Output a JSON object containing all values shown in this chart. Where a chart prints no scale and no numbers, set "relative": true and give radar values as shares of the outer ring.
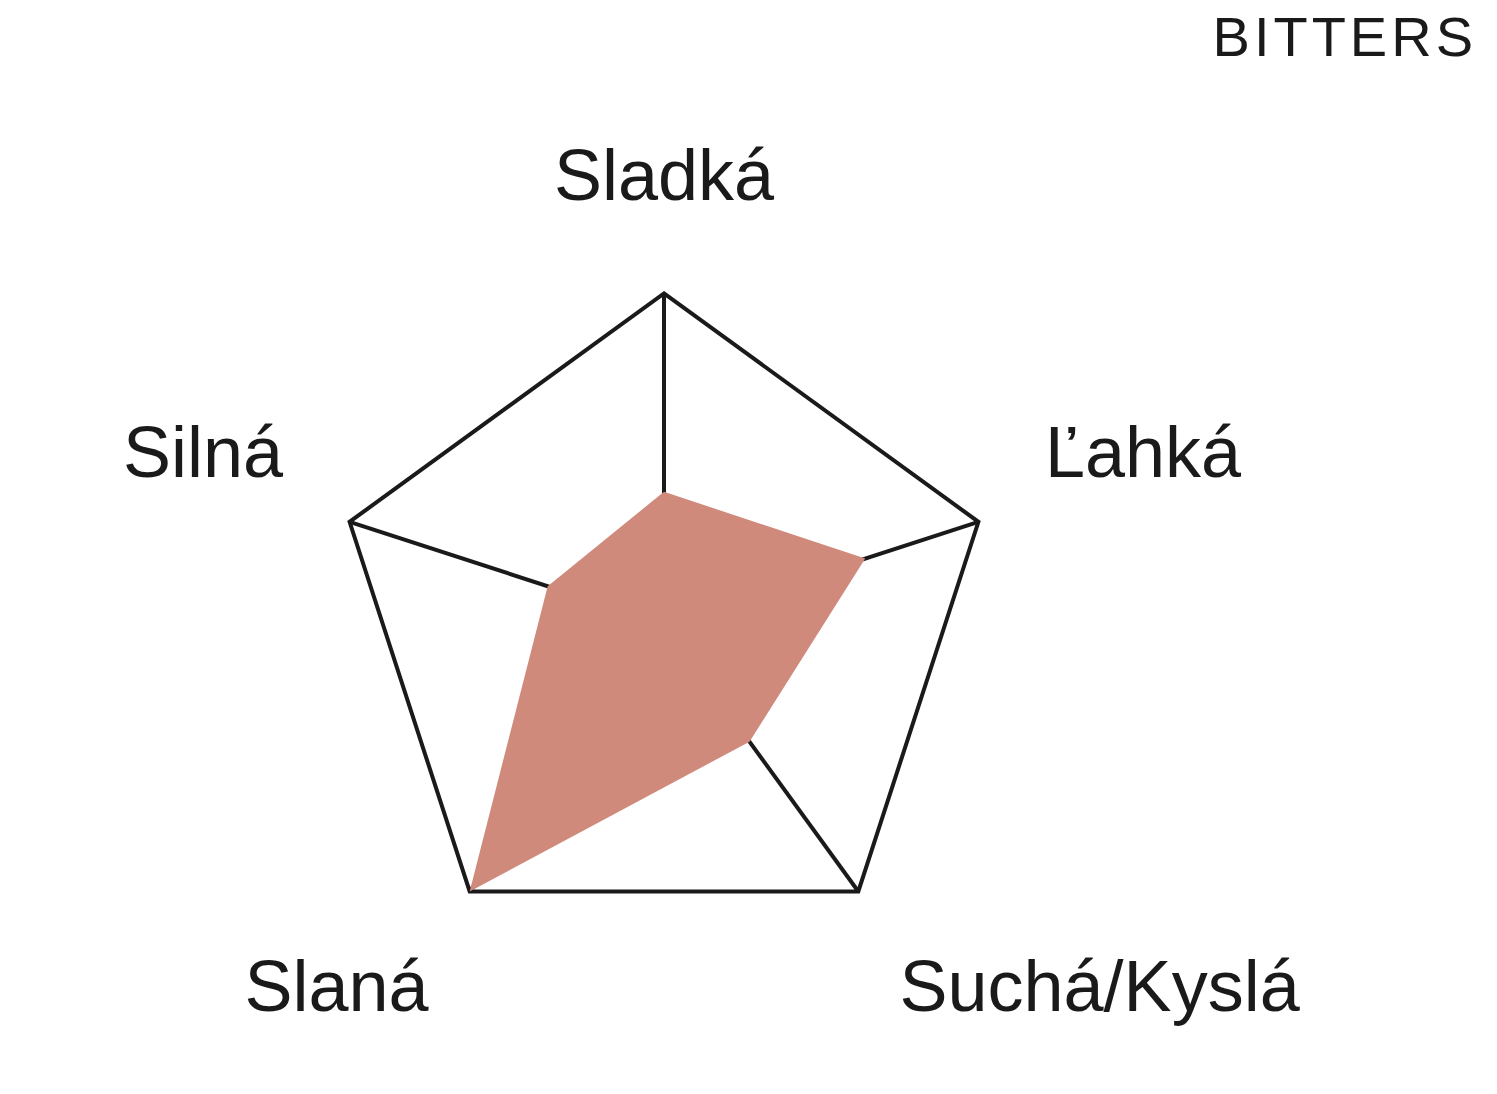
{
  "chart_data": {
    "type": "radar",
    "title": "BITTERS",
    "categories": [
      "Sladká",
      "Ľahká",
      "Suchá/Kyslá",
      "Slaná",
      "Silná"
    ],
    "relative": true,
    "grid": true,
    "legend": false,
    "series": [
      {
        "color": "#cf8a7c",
        "values": [
          0.4,
          0.64,
          0.44,
          1.0,
          0.37
        ]
      }
    ]
  }
}
